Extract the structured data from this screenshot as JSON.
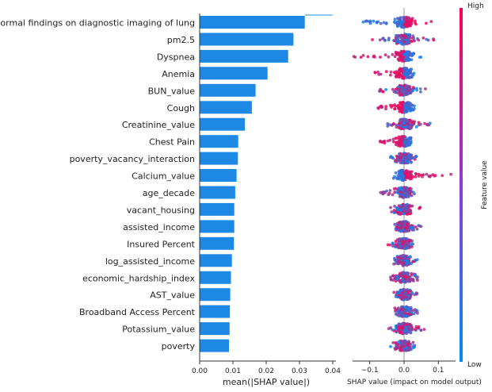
{
  "colors": {
    "bar": "#1e88e5",
    "high": "#ff0052",
    "low": "#008bfb",
    "axis": "#333333"
  },
  "chart_data": [
    {
      "type": "bar",
      "orientation": "horizontal",
      "categories": [
        "Abnormal findings on diagnostic imaging of lung",
        "pm2.5",
        "Dyspnea",
        "Anemia",
        "BUN_value",
        "Cough",
        "Creatinine_value",
        "Chest Pain",
        "poverty_vacancy_interaction",
        "Calcium_value",
        "age_decade",
        "vacant_housing",
        "assisted_income",
        "Insured Percent",
        "log_assisted_income",
        "economic_hardship_index",
        "AST_value",
        "Broadband Access Percent",
        "Potassium_value",
        "poverty"
      ],
      "values": [
        0.0316,
        0.0282,
        0.0266,
        0.0204,
        0.0168,
        0.0157,
        0.0136,
        0.0116,
        0.0115,
        0.0111,
        0.0107,
        0.0104,
        0.0104,
        0.0103,
        0.0097,
        0.0094,
        0.0092,
        0.0091,
        0.009,
        0.0088
      ],
      "xlabel": "mean(|SHAP value|)",
      "xlim": [
        0,
        0.04
      ],
      "xticks": [
        "0.00",
        "0.01",
        "0.02",
        "0.03",
        "0.04"
      ]
    },
    {
      "type": "scatter",
      "subtype": "beeswarm",
      "xlabel": "SHAP value (impact on model output)",
      "xlim": [
        -0.15,
        0.15
      ],
      "xticks": [
        "−0.1",
        "0.0",
        "0.1"
      ],
      "features": [
        {
          "name": "Abnormal findings on diagnostic imaging of lung",
          "spread": [
            -0.12,
            0.08
          ],
          "high_side": "right"
        },
        {
          "name": "pm2.5",
          "spread": [
            -0.1,
            0.09
          ],
          "high_side": "mixed"
        },
        {
          "name": "Dyspnea",
          "spread": [
            -0.15,
            0.05
          ],
          "high_side": "left"
        },
        {
          "name": "Anemia",
          "spread": [
            -0.09,
            0.04
          ],
          "high_side": "left"
        },
        {
          "name": "BUN_value",
          "spread": [
            -0.08,
            0.08
          ],
          "high_side": "mixed"
        },
        {
          "name": "Cough",
          "spread": [
            -0.08,
            0.03
          ],
          "high_side": "left"
        },
        {
          "name": "Creatinine_value",
          "spread": [
            -0.05,
            0.08
          ],
          "high_side": "mixed"
        },
        {
          "name": "Chest Pain",
          "spread": [
            -0.07,
            0.02
          ],
          "high_side": "left"
        },
        {
          "name": "poverty_vacancy_interaction",
          "spread": [
            -0.04,
            0.05
          ],
          "high_side": "mixed"
        },
        {
          "name": "Calcium_value",
          "spread": [
            -0.04,
            0.14
          ],
          "high_side": "right"
        },
        {
          "name": "age_decade",
          "spread": [
            -0.07,
            0.03
          ],
          "high_side": "mixed"
        },
        {
          "name": "vacant_housing",
          "spread": [
            -0.04,
            0.05
          ],
          "high_side": "mixed"
        },
        {
          "name": "assisted_income",
          "spread": [
            -0.03,
            0.05
          ],
          "high_side": "mixed"
        },
        {
          "name": "Insured Percent",
          "spread": [
            -0.05,
            0.03
          ],
          "high_side": "mixed"
        },
        {
          "name": "log_assisted_income",
          "spread": [
            -0.03,
            0.04
          ],
          "high_side": "mixed"
        },
        {
          "name": "economic_hardship_index",
          "spread": [
            -0.04,
            0.04
          ],
          "high_side": "mixed"
        },
        {
          "name": "AST_value",
          "spread": [
            -0.03,
            0.04
          ],
          "high_side": "mixed"
        },
        {
          "name": "Broadband Access Percent",
          "spread": [
            -0.03,
            0.04
          ],
          "high_side": "mixed"
        },
        {
          "name": "Potassium_value",
          "spread": [
            -0.05,
            0.06
          ],
          "high_side": "mixed"
        },
        {
          "name": "poverty",
          "spread": [
            -0.04,
            0.04
          ],
          "high_side": "mixed"
        }
      ],
      "colorbar": {
        "label": "Feature value",
        "high_label": "High",
        "low_label": "Low"
      }
    }
  ]
}
